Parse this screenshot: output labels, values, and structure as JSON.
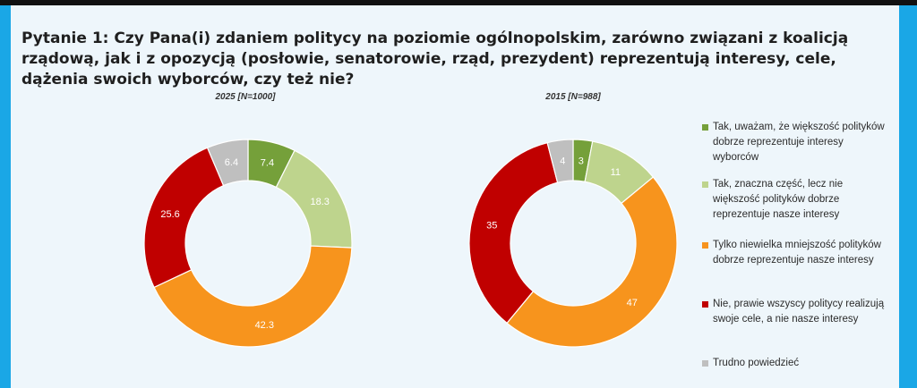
{
  "title": "Pytanie 1: Czy Pana(i) zdaniem politycy na poziomie ogólnopolskim, zarówno związani z koalicją rządową, jak i z opozycją (posłowie, senatorowie, rząd, prezydent) reprezentują interesy, cele, dążenia swoich wyborców, czy też nie?",
  "colors": {
    "tak_wiekszosc": "#75a03a",
    "tak_znaczna": "#bed48d",
    "niewielka": "#f7941d",
    "nie": "#c00000",
    "trudno": "#bfbfbf"
  },
  "legend": [
    {
      "key": "tak_wiekszosc",
      "label": "Tak, uważam, że większość polityków dobrze reprezentuje interesy wyborców"
    },
    {
      "key": "tak_znaczna",
      "label": "Tak, znaczna część, lecz nie większość polityków dobrze reprezentuje nasze interesy"
    },
    {
      "key": "niewielka",
      "label": "Tylko niewielka mniejszość polityków dobrze reprezentuje nasze interesy"
    },
    {
      "key": "nie",
      "label": "Nie, prawie wszyscy politycy realizują swoje cele, a nie nasze interesy"
    },
    {
      "key": "trudno",
      "label": "Trudno powiedzieć"
    }
  ],
  "chart_data": [
    {
      "type": "pie",
      "title": "2025 [N=1000]",
      "categories": [
        "tak_wiekszosc",
        "tak_znaczna",
        "niewielka",
        "nie",
        "trudno"
      ],
      "values": [
        7.4,
        18.3,
        42.3,
        25.6,
        6.4
      ],
      "labels": [
        "7.4",
        "18.3",
        "42.3",
        "25.6",
        "6.4"
      ]
    },
    {
      "type": "pie",
      "title": "2015 [N=988]",
      "categories": [
        "tak_wiekszosc",
        "tak_znaczna",
        "niewielka",
        "nie",
        "trudno"
      ],
      "values": [
        3,
        11,
        47,
        35,
        4
      ],
      "labels": [
        "3",
        "11",
        "47",
        "35",
        "4"
      ]
    }
  ]
}
